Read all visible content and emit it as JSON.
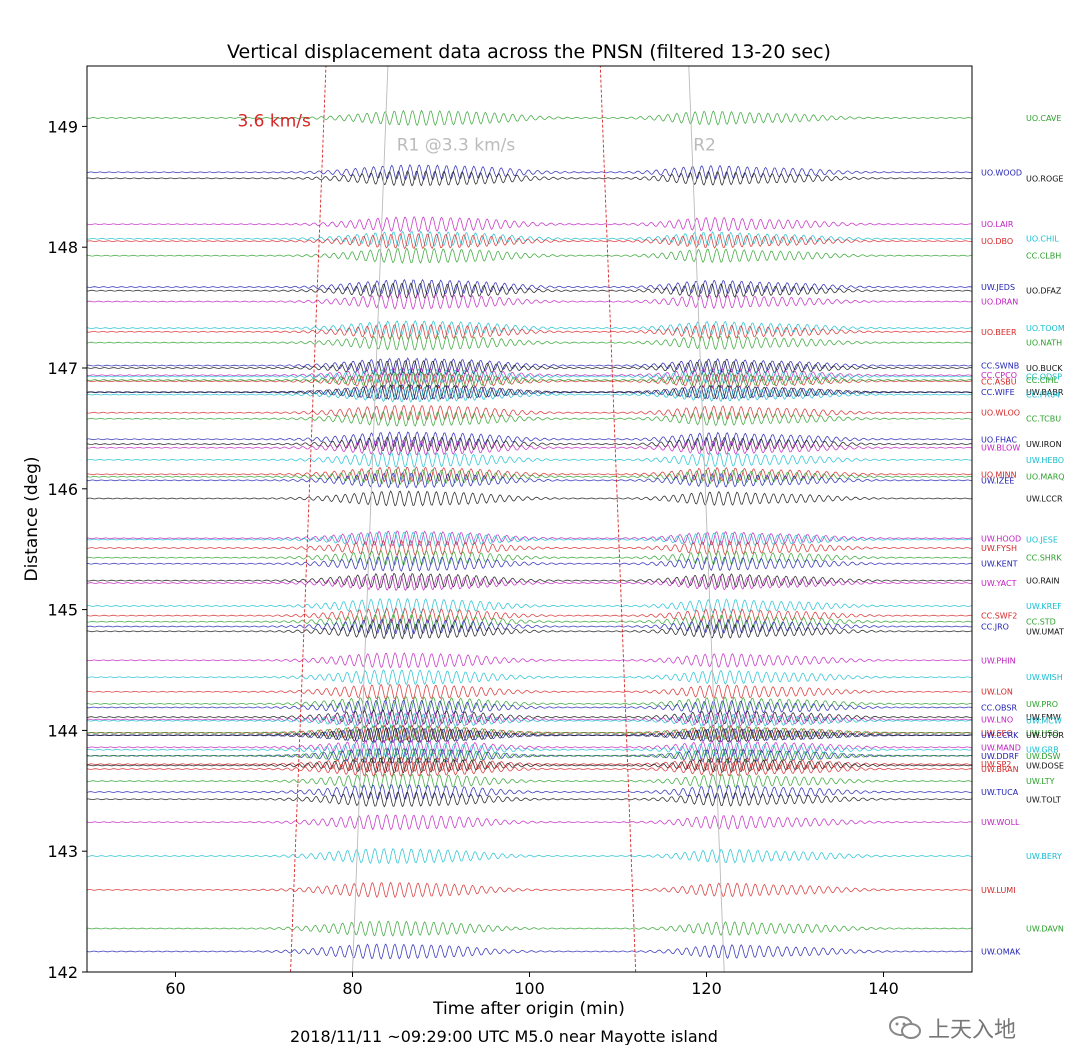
{
  "chart_data": {
    "type": "line",
    "title": "Vertical displacement data across the PNSN (filtered 13-20 sec)",
    "xlabel": "Time after origin (min)",
    "ylabel": "Distance (deg)",
    "xlim": [
      50,
      150
    ],
    "ylim": [
      142,
      149.5
    ],
    "xticks": [
      60,
      80,
      100,
      120,
      140
    ],
    "yticks": [
      142,
      143,
      144,
      145,
      146,
      147,
      148,
      149
    ],
    "caption": "2018/11/11 ~09:29:00 UTC  M5.0 near Mayotte island",
    "grid": false,
    "annotations": [
      {
        "text": "3.6 km/s",
        "x": 67.0,
        "y": 149.05,
        "color": "#d62728"
      },
      {
        "text": "R1 @3.3 km/s",
        "x": 85.0,
        "y": 148.85,
        "color": "#bbbbbb"
      },
      {
        "text": "R2",
        "x": 118.5,
        "y": 148.85,
        "color": "#bbbbbb"
      }
    ],
    "move_lines": [
      {
        "name": "3.6 km/s",
        "color": "#d62728",
        "style": "dashed",
        "points": [
          [
            73.0,
            142.0
          ],
          [
            77.0,
            149.5
          ]
        ]
      },
      {
        "name": "R1",
        "color": "#bbbbbb",
        "style": "solid",
        "points": [
          [
            80.0,
            142.0
          ],
          [
            84.0,
            149.5
          ]
        ]
      },
      {
        "name": "3.6 km/s (R2)",
        "color": "#d62728",
        "style": "dashed",
        "points": [
          [
            112.0,
            142.0
          ],
          [
            108.0,
            149.5
          ]
        ]
      },
      {
        "name": "R2",
        "color": "#bbbbbb",
        "style": "solid",
        "points": [
          [
            122.0,
            142.0
          ],
          [
            118.0,
            149.5
          ]
        ]
      }
    ],
    "stations": [
      {
        "name": "UO.CAVE",
        "distance": 149.07,
        "color": "#2ca02c",
        "col": "right"
      },
      {
        "name": "UO.WOOD",
        "distance": 148.62,
        "color": "#1f1fb4",
        "col": "left"
      },
      {
        "name": "UO.ROGE",
        "distance": 148.57,
        "color": "#111111",
        "col": "right"
      },
      {
        "name": "UO.LAIR",
        "distance": 148.19,
        "color": "#c020c0",
        "col": "left"
      },
      {
        "name": "UO.CHIL",
        "distance": 148.07,
        "color": "#17becf",
        "col": "right"
      },
      {
        "name": "UO.DBO",
        "distance": 148.05,
        "color": "#d62728",
        "col": "left"
      },
      {
        "name": "CC.CLBH",
        "distance": 147.93,
        "color": "#2ca02c",
        "col": "right"
      },
      {
        "name": "UW.JEDS",
        "distance": 147.67,
        "color": "#1f1fb4",
        "col": "left"
      },
      {
        "name": "UO.DFAZ",
        "distance": 147.64,
        "color": "#111111",
        "col": "right"
      },
      {
        "name": "UO.DRAN",
        "distance": 147.55,
        "color": "#c020c0",
        "col": "left"
      },
      {
        "name": "UO.TOOM",
        "distance": 147.33,
        "color": "#17becf",
        "col": "right"
      },
      {
        "name": "UO.BEER",
        "distance": 147.3,
        "color": "#d62728",
        "col": "left"
      },
      {
        "name": "UO.NATH",
        "distance": 147.21,
        "color": "#2ca02c",
        "col": "right"
      },
      {
        "name": "CC.SWNB",
        "distance": 147.02,
        "color": "#1f1fb4",
        "col": "left"
      },
      {
        "name": "UO.BUCK",
        "distance": 147.0,
        "color": "#111111",
        "col": "right"
      },
      {
        "name": "CC.CPCO",
        "distance": 146.94,
        "color": "#c020c0",
        "col": "left"
      },
      {
        "name": "CC.ODSP",
        "distance": 146.93,
        "color": "#17becf",
        "col": "right"
      },
      {
        "name": "CC.ASBU",
        "distance": 146.89,
        "color": "#d62728",
        "col": "left"
      },
      {
        "name": "CC.CIHL",
        "distance": 146.9,
        "color": "#2ca02c",
        "col": "right"
      },
      {
        "name": "CC.WIFE",
        "distance": 146.8,
        "color": "#1f1fb4",
        "col": "left"
      },
      {
        "name": "UW.BABR",
        "distance": 146.8,
        "color": "#111111",
        "col": "right"
      },
      {
        "name": "CC.PR04",
        "distance": 146.78,
        "color": "#17becf",
        "col": "right"
      },
      {
        "name": "UO.WLOO",
        "distance": 146.63,
        "color": "#d62728",
        "col": "left"
      },
      {
        "name": "CC.TCBU",
        "distance": 146.58,
        "color": "#2ca02c",
        "col": "right"
      },
      {
        "name": "UO.FHAC",
        "distance": 146.41,
        "color": "#1f1fb4",
        "col": "left"
      },
      {
        "name": "UW.IRON",
        "distance": 146.37,
        "color": "#111111",
        "col": "right"
      },
      {
        "name": "UW.BLOW",
        "distance": 146.34,
        "color": "#c020c0",
        "col": "left"
      },
      {
        "name": "UW.HEBO",
        "distance": 146.24,
        "color": "#17becf",
        "col": "right"
      },
      {
        "name": "UO.MINN",
        "distance": 146.12,
        "color": "#d62728",
        "col": "left"
      },
      {
        "name": "UO.MARQ",
        "distance": 146.1,
        "color": "#2ca02c",
        "col": "right"
      },
      {
        "name": "UW.IZEE",
        "distance": 146.07,
        "color": "#1f1fb4",
        "col": "left"
      },
      {
        "name": "UW.LCCR",
        "distance": 145.92,
        "color": "#111111",
        "col": "right"
      },
      {
        "name": "UW.HOOD",
        "distance": 145.59,
        "color": "#c020c0",
        "col": "left"
      },
      {
        "name": "UO.JESE",
        "distance": 145.58,
        "color": "#17becf",
        "col": "right"
      },
      {
        "name": "UW.FYSH",
        "distance": 145.51,
        "color": "#d62728",
        "col": "left"
      },
      {
        "name": "CC.SHRK",
        "distance": 145.43,
        "color": "#2ca02c",
        "col": "right"
      },
      {
        "name": "UW.KENT",
        "distance": 145.38,
        "color": "#1f1fb4",
        "col": "left"
      },
      {
        "name": "UO.RAIN",
        "distance": 145.24,
        "color": "#111111",
        "col": "right"
      },
      {
        "name": "UW.YACT",
        "distance": 145.22,
        "color": "#c020c0",
        "col": "left"
      },
      {
        "name": "UW.KREF",
        "distance": 145.03,
        "color": "#17becf",
        "col": "right"
      },
      {
        "name": "CC.SWF2",
        "distance": 144.95,
        "color": "#d62728",
        "col": "left"
      },
      {
        "name": "CC.STD",
        "distance": 144.9,
        "color": "#2ca02c",
        "col": "right"
      },
      {
        "name": "CC.JRO",
        "distance": 144.86,
        "color": "#1f1fb4",
        "col": "left"
      },
      {
        "name": "UW.UMAT",
        "distance": 144.82,
        "color": "#111111",
        "col": "right"
      },
      {
        "name": "UW.PHIN",
        "distance": 144.58,
        "color": "#c020c0",
        "col": "left"
      },
      {
        "name": "UW.WISH",
        "distance": 144.44,
        "color": "#17becf",
        "col": "right"
      },
      {
        "name": "UW.LON",
        "distance": 144.32,
        "color": "#d62728",
        "col": "left"
      },
      {
        "name": "UW.PRO",
        "distance": 144.22,
        "color": "#2ca02c",
        "col": "right"
      },
      {
        "name": "CC.OBSR",
        "distance": 144.19,
        "color": "#1f1fb4",
        "col": "left"
      },
      {
        "name": "UW.FMW",
        "distance": 144.11,
        "color": "#111111",
        "col": "right"
      },
      {
        "name": "UW.LNO",
        "distance": 144.09,
        "color": "#c020c0",
        "col": "left"
      },
      {
        "name": "UW.MCW",
        "distance": 144.08,
        "color": "#17becf",
        "col": "right"
      },
      {
        "name": "UW.SEO",
        "distance": 143.98,
        "color": "#d62728",
        "col": "left"
      },
      {
        "name": "UW.HSO",
        "distance": 143.98,
        "color": "#2ca02c",
        "col": "right"
      },
      {
        "name": "UW.CCRK",
        "distance": 143.96,
        "color": "#1f1fb4",
        "col": "left"
      },
      {
        "name": "UW.UTOR",
        "distance": 143.96,
        "color": "#111111",
        "col": "right"
      },
      {
        "name": "UW.MAND",
        "distance": 143.86,
        "color": "#c020c0",
        "col": "left"
      },
      {
        "name": "UW.GRB",
        "distance": 143.84,
        "color": "#17becf",
        "col": "right"
      },
      {
        "name": "UW.DDRF",
        "distance": 143.79,
        "color": "#1f1fb4",
        "col": "left"
      },
      {
        "name": "UW.DSW",
        "distance": 143.79,
        "color": "#2ca02c",
        "col": "right"
      },
      {
        "name": "UW.SP2",
        "distance": 143.72,
        "color": "#d62728",
        "col": "left"
      },
      {
        "name": "UW.DOSE",
        "distance": 143.71,
        "color": "#111111",
        "col": "right"
      },
      {
        "name": "UW.BRAN",
        "distance": 143.68,
        "color": "#d62728",
        "col": "left"
      },
      {
        "name": "UW.LTY",
        "distance": 143.58,
        "color": "#2ca02c",
        "col": "right"
      },
      {
        "name": "UW.TUCA",
        "distance": 143.49,
        "color": "#1f1fb4",
        "col": "left"
      },
      {
        "name": "UW.TOLT",
        "distance": 143.43,
        "color": "#111111",
        "col": "right"
      },
      {
        "name": "UW.WOLL",
        "distance": 143.24,
        "color": "#c020c0",
        "col": "left"
      },
      {
        "name": "UW.BERY",
        "distance": 142.96,
        "color": "#17becf",
        "col": "right"
      },
      {
        "name": "UW.LUMI",
        "distance": 142.68,
        "color": "#d62728",
        "col": "left"
      },
      {
        "name": "UW.DAVN",
        "distance": 142.36,
        "color": "#2ca02c",
        "col": "right"
      },
      {
        "name": "UW.OMAK",
        "distance": 142.17,
        "color": "#1f1fb4",
        "col": "left"
      }
    ]
  },
  "watermark": {
    "text": "上天入地"
  }
}
